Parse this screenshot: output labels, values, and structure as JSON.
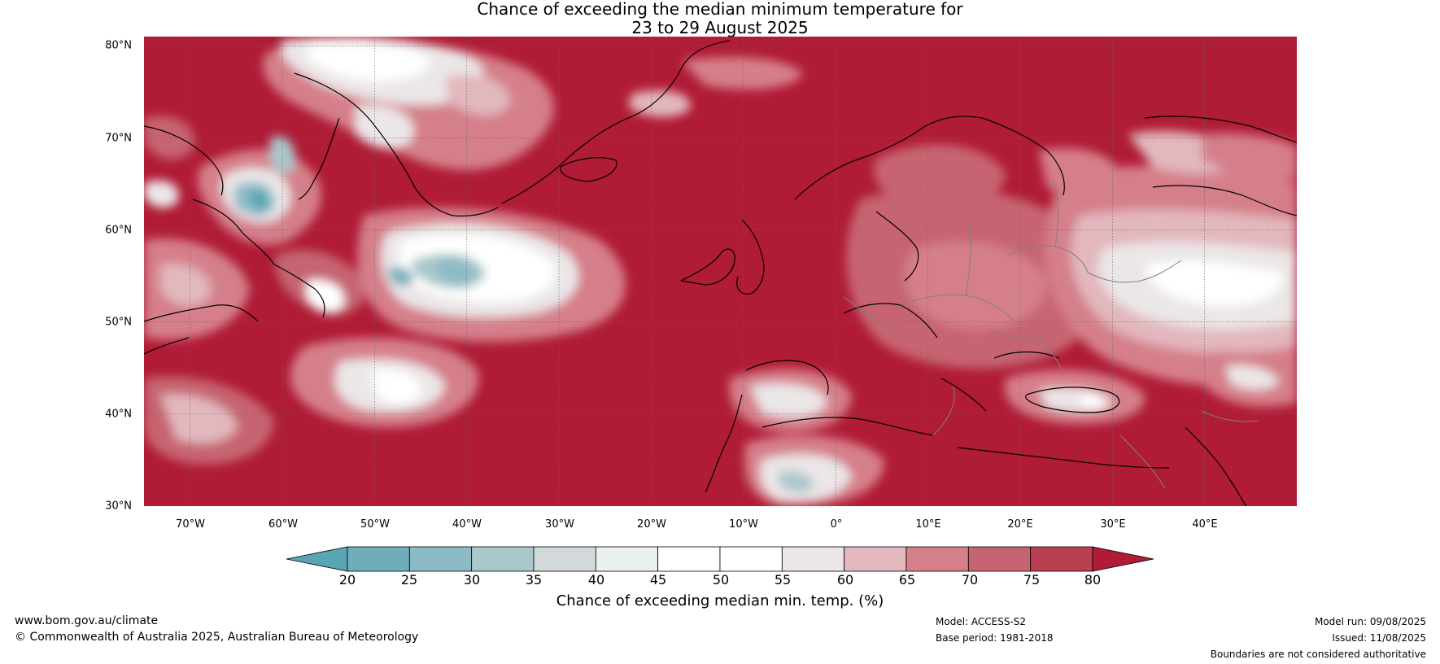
{
  "title": {
    "line1": "Chance of exceeding the median minimum temperature for",
    "line2": "23 to 29 August 2025"
  },
  "map": {
    "lat_labels": [
      "80°N",
      "70°N",
      "60°N",
      "50°N",
      "40°N",
      "30°N"
    ],
    "lat_values": [
      80,
      70,
      60,
      50,
      40,
      30
    ],
    "lon_labels": [
      "70°W",
      "60°W",
      "50°W",
      "40°W",
      "30°W",
      "20°W",
      "10°W",
      "0°",
      "10°E",
      "20°E",
      "30°E",
      "40°E"
    ],
    "lon_values": [
      -70,
      -60,
      -50,
      -40,
      -30,
      -20,
      -10,
      0,
      10,
      20,
      30,
      40
    ],
    "lon_range": [
      -75,
      50
    ],
    "lat_range": [
      30,
      81
    ],
    "background_color": "#b01b35"
  },
  "colorbar": {
    "ticks": [
      "20",
      "25",
      "30",
      "35",
      "40",
      "45",
      "50",
      "55",
      "60",
      "65",
      "70",
      "75",
      "80"
    ],
    "colors": [
      "#5aa5b4",
      "#6fadbb",
      "#8cbbc6",
      "#aac7cc",
      "#d1d9da",
      "#e9f0f0",
      "#ffffff",
      "#ffffff",
      "#ebe6e7",
      "#e2b7bd",
      "#d57f8a",
      "#c66571",
      "#ba3f50",
      "#b01b35"
    ],
    "label": "Chance of exceeding median min. temp. (%)"
  },
  "footer": {
    "website": "www.bom.gov.au/climate",
    "copyright": "© Commonwealth of Australia 2025, Australian Bureau of Meteorology",
    "model": "Model: ACCESS-S2",
    "base_period": "Base period: 1981-2018",
    "model_run": "Model run: 09/08/2025",
    "issued": "Issued: 11/08/2025",
    "disclaimer": "Boundaries are not considered authoritative"
  }
}
